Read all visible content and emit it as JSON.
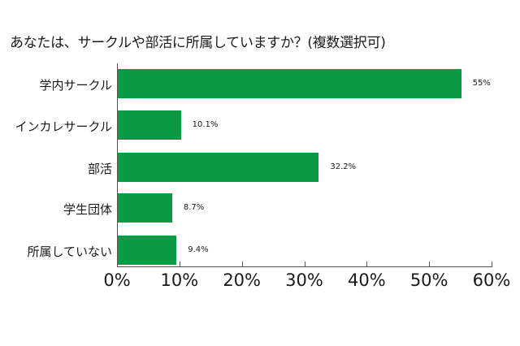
{
  "chart_data": {
    "type": "bar",
    "orientation": "horizontal",
    "title": "あなたは、サークルや部活に所属していますか？(複数選択可)",
    "categories": [
      "学内サークル",
      "インカレサークル",
      "部活",
      "学生団体",
      "所属していない"
    ],
    "values": [
      55,
      10.1,
      32.2,
      8.7,
      9.4
    ],
    "value_labels": [
      "55%",
      "10.1%",
      "32.2%",
      "8.7%",
      "9.4%"
    ],
    "xlabel": "",
    "ylabel": "",
    "xlim": [
      0,
      60
    ],
    "xticks": [
      "0%",
      "10%",
      "20%",
      "30%",
      "40%",
      "50%",
      "60%"
    ],
    "grid": false,
    "legend": null,
    "bar_color": "#0a9a44"
  }
}
